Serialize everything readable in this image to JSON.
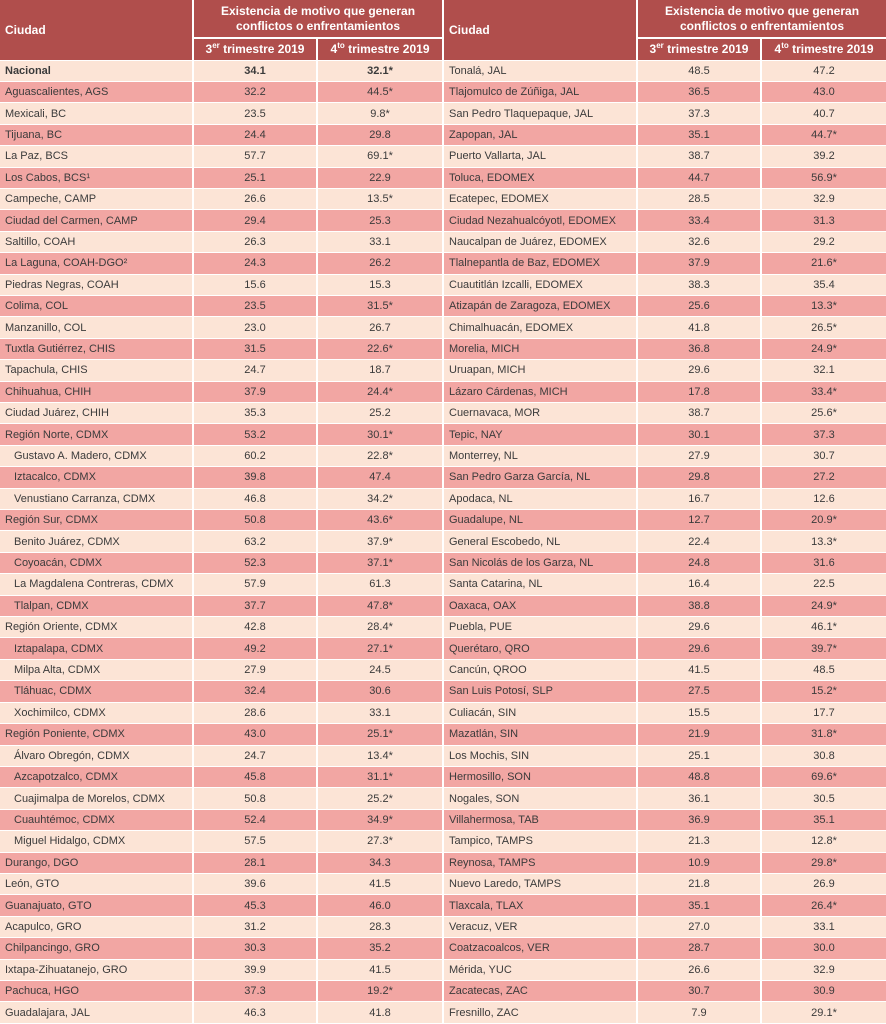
{
  "colors": {
    "header_bg": "#B04E4C",
    "row_dark": "#F2A6A3",
    "row_light": "#FCE4D6",
    "text": "#3B3B3B",
    "header_text": "#FFFFFF"
  },
  "header": {
    "city_col": "Ciudad",
    "group": "Existencia de motivo que generan conflictos o enfrentamientos",
    "q3": {
      "num": "3",
      "sup": "er",
      "rest": " trimestre 2019"
    },
    "q4": {
      "num": "4",
      "sup": "to",
      "rest": " trimestre 2019"
    }
  },
  "table": {
    "left_rows": [
      {
        "city": "Nacional",
        "q3": "34.1",
        "q4": "32.1*",
        "bold": true
      },
      {
        "city": "Aguascalientes, AGS",
        "q3": "32.2",
        "q4": "44.5*"
      },
      {
        "city": "Mexicali, BC",
        "q3": "23.5",
        "q4": "9.8*"
      },
      {
        "city": "Tijuana, BC",
        "q3": "24.4",
        "q4": "29.8"
      },
      {
        "city": "La Paz, BCS",
        "q3": "57.7",
        "q4": "69.1*"
      },
      {
        "city": "Los Cabos, BCS¹",
        "q3": "25.1",
        "q4": "22.9"
      },
      {
        "city": "Campeche, CAMP",
        "q3": "26.6",
        "q4": "13.5*"
      },
      {
        "city": "Ciudad del Carmen, CAMP",
        "q3": "29.4",
        "q4": "25.3"
      },
      {
        "city": "Saltillo, COAH",
        "q3": "26.3",
        "q4": "33.1"
      },
      {
        "city": "La Laguna, COAH-DGO²",
        "q3": "24.3",
        "q4": "26.2"
      },
      {
        "city": "Piedras Negras, COAH",
        "q3": "15.6",
        "q4": "15.3"
      },
      {
        "city": "Colima, COL",
        "q3": "23.5",
        "q4": "31.5*"
      },
      {
        "city": "Manzanillo, COL",
        "q3": "23.0",
        "q4": "26.7"
      },
      {
        "city": "Tuxtla Gutiérrez, CHIS",
        "q3": "31.5",
        "q4": "22.6*"
      },
      {
        "city": "Tapachula, CHIS",
        "q3": "24.7",
        "q4": "18.7"
      },
      {
        "city": "Chihuahua, CHIH",
        "q3": "37.9",
        "q4": "24.4*"
      },
      {
        "city": "Ciudad Juárez, CHIH",
        "q3": "35.3",
        "q4": "25.2"
      },
      {
        "city": "Región Norte, CDMX",
        "q3": "53.2",
        "q4": "30.1*"
      },
      {
        "city": "Gustavo A. Madero, CDMX",
        "q3": "60.2",
        "q4": "22.8*",
        "indent": true
      },
      {
        "city": "Iztacalco, CDMX",
        "q3": "39.8",
        "q4": "47.4",
        "indent": true
      },
      {
        "city": "Venustiano Carranza, CDMX",
        "q3": "46.8",
        "q4": "34.2*",
        "indent": true
      },
      {
        "city": "Región Sur, CDMX",
        "q3": "50.8",
        "q4": "43.6*"
      },
      {
        "city": "Benito Juárez, CDMX",
        "q3": "63.2",
        "q4": "37.9*",
        "indent": true
      },
      {
        "city": "Coyoacán, CDMX",
        "q3": "52.3",
        "q4": "37.1*",
        "indent": true
      },
      {
        "city": "La Magdalena Contreras, CDMX",
        "q3": "57.9",
        "q4": "61.3",
        "indent": true
      },
      {
        "city": "Tlalpan, CDMX",
        "q3": "37.7",
        "q4": "47.8*",
        "indent": true
      },
      {
        "city": "Región Oriente, CDMX",
        "q3": "42.8",
        "q4": "28.4*"
      },
      {
        "city": "Iztapalapa, CDMX",
        "q3": "49.2",
        "q4": "27.1*",
        "indent": true
      },
      {
        "city": "Milpa Alta, CDMX",
        "q3": "27.9",
        "q4": "24.5",
        "indent": true
      },
      {
        "city": "Tláhuac, CDMX",
        "q3": "32.4",
        "q4": "30.6",
        "indent": true
      },
      {
        "city": "Xochimilco, CDMX",
        "q3": "28.6",
        "q4": "33.1",
        "indent": true
      },
      {
        "city": "Región Poniente, CDMX",
        "q3": "43.0",
        "q4": "25.1*"
      },
      {
        "city": "Álvaro Obregón, CDMX",
        "q3": "24.7",
        "q4": "13.4*",
        "indent": true
      },
      {
        "city": "Azcapotzalco, CDMX",
        "q3": "45.8",
        "q4": "31.1*",
        "indent": true
      },
      {
        "city": "Cuajimalpa de Morelos, CDMX",
        "q3": "50.8",
        "q4": "25.2*",
        "indent": true
      },
      {
        "city": "Cuauhtémoc, CDMX",
        "q3": "52.4",
        "q4": "34.9*",
        "indent": true
      },
      {
        "city": "Miguel Hidalgo, CDMX",
        "q3": "57.5",
        "q4": "27.3*",
        "indent": true
      },
      {
        "city": "Durango, DGO",
        "q3": "28.1",
        "q4": "34.3"
      },
      {
        "city": "León, GTO",
        "q3": "39.6",
        "q4": "41.5"
      },
      {
        "city": "Guanajuato, GTO",
        "q3": "45.3",
        "q4": "46.0"
      },
      {
        "city": "Acapulco, GRO",
        "q3": "31.2",
        "q4": "28.3"
      },
      {
        "city": "Chilpancingo, GRO",
        "q3": "30.3",
        "q4": "35.2"
      },
      {
        "city": "Ixtapa-Zihuatanejo, GRO",
        "q3": "39.9",
        "q4": "41.5"
      },
      {
        "city": "Pachuca, HGO",
        "q3": "37.3",
        "q4": "19.2*"
      },
      {
        "city": "Guadalajara, JAL",
        "q3": "46.3",
        "q4": "41.8"
      }
    ],
    "right_rows": [
      {
        "city": "Tonalá, JAL",
        "q3": "48.5",
        "q4": "47.2"
      },
      {
        "city": "Tlajomulco de Zúñiga, JAL",
        "q3": "36.5",
        "q4": "43.0"
      },
      {
        "city": "San Pedro Tlaquepaque, JAL",
        "q3": "37.3",
        "q4": "40.7"
      },
      {
        "city": "Zapopan, JAL",
        "q3": "35.1",
        "q4": "44.7*"
      },
      {
        "city": "Puerto Vallarta, JAL",
        "q3": "38.7",
        "q4": "39.2"
      },
      {
        "city": "Toluca, EDOMEX",
        "q3": "44.7",
        "q4": "56.9*"
      },
      {
        "city": "Ecatepec, EDOMEX",
        "q3": "28.5",
        "q4": "32.9"
      },
      {
        "city": "Ciudad Nezahualcóyotl, EDOMEX",
        "q3": "33.4",
        "q4": "31.3"
      },
      {
        "city": "Naucalpan de Juárez, EDOMEX",
        "q3": "32.6",
        "q4": "29.2"
      },
      {
        "city": "Tlalnepantla de Baz, EDOMEX",
        "q3": "37.9",
        "q4": "21.6*"
      },
      {
        "city": "Cuautitlán Izcalli, EDOMEX",
        "q3": "38.3",
        "q4": "35.4"
      },
      {
        "city": "Atizapán de Zaragoza, EDOMEX",
        "q3": "25.6",
        "q4": "13.3*"
      },
      {
        "city": "Chimalhuacán, EDOMEX",
        "q3": "41.8",
        "q4": "26.5*"
      },
      {
        "city": "Morelia, MICH",
        "q3": "36.8",
        "q4": "24.9*"
      },
      {
        "city": "Uruapan, MICH",
        "q3": "29.6",
        "q4": "32.1"
      },
      {
        "city": "Lázaro Cárdenas, MICH",
        "q3": "17.8",
        "q4": "33.4*"
      },
      {
        "city": "Cuernavaca, MOR",
        "q3": "38.7",
        "q4": "25.6*"
      },
      {
        "city": "Tepic, NAY",
        "q3": "30.1",
        "q4": "37.3"
      },
      {
        "city": "Monterrey, NL",
        "q3": "27.9",
        "q4": "30.7"
      },
      {
        "city": "San Pedro Garza García, NL",
        "q3": "29.8",
        "q4": "27.2"
      },
      {
        "city": "Apodaca, NL",
        "q3": "16.7",
        "q4": "12.6"
      },
      {
        "city": "Guadalupe, NL",
        "q3": "12.7",
        "q4": "20.9*"
      },
      {
        "city": "General Escobedo, NL",
        "q3": "22.4",
        "q4": "13.3*"
      },
      {
        "city": "San Nicolás de los Garza, NL",
        "q3": "24.8",
        "q4": "31.6"
      },
      {
        "city": "Santa Catarina, NL",
        "q3": "16.4",
        "q4": "22.5"
      },
      {
        "city": "Oaxaca, OAX",
        "q3": "38.8",
        "q4": "24.9*"
      },
      {
        "city": "Puebla, PUE",
        "q3": "29.6",
        "q4": "46.1*"
      },
      {
        "city": "Querétaro, QRO",
        "q3": "29.6",
        "q4": "39.7*"
      },
      {
        "city": "Cancún, QROO",
        "q3": "41.5",
        "q4": "48.5"
      },
      {
        "city": "San Luis Potosí, SLP",
        "q3": "27.5",
        "q4": "15.2*"
      },
      {
        "city": "Culiacán, SIN",
        "q3": "15.5",
        "q4": "17.7"
      },
      {
        "city": "Mazatlán, SIN",
        "q3": "21.9",
        "q4": "31.8*"
      },
      {
        "city": "Los Mochis, SIN",
        "q3": "25.1",
        "q4": "30.8"
      },
      {
        "city": "Hermosillo, SON",
        "q3": "48.8",
        "q4": "69.6*"
      },
      {
        "city": "Nogales, SON",
        "q3": "36.1",
        "q4": "30.5"
      },
      {
        "city": "Villahermosa, TAB",
        "q3": "36.9",
        "q4": "35.1"
      },
      {
        "city": "Tampico, TAMPS",
        "q3": "21.3",
        "q4": "12.8*"
      },
      {
        "city": "Reynosa, TAMPS",
        "q3": "10.9",
        "q4": "29.8*"
      },
      {
        "city": "Nuevo Laredo, TAMPS",
        "q3": "21.8",
        "q4": "26.9"
      },
      {
        "city": "Tlaxcala, TLAX",
        "q3": "35.1",
        "q4": "26.4*"
      },
      {
        "city": "Veracuz, VER",
        "q3": "27.0",
        "q4": "33.1"
      },
      {
        "city": "Coatzacoalcos, VER",
        "q3": "28.7",
        "q4": "30.0"
      },
      {
        "city": "Mérida, YUC",
        "q3": "26.6",
        "q4": "32.9"
      },
      {
        "city": "Zacatecas, ZAC",
        "q3": "30.7",
        "q4": "30.9"
      },
      {
        "city": "Fresnillo, ZAC",
        "q3": "7.9",
        "q4": "29.1*"
      }
    ]
  }
}
